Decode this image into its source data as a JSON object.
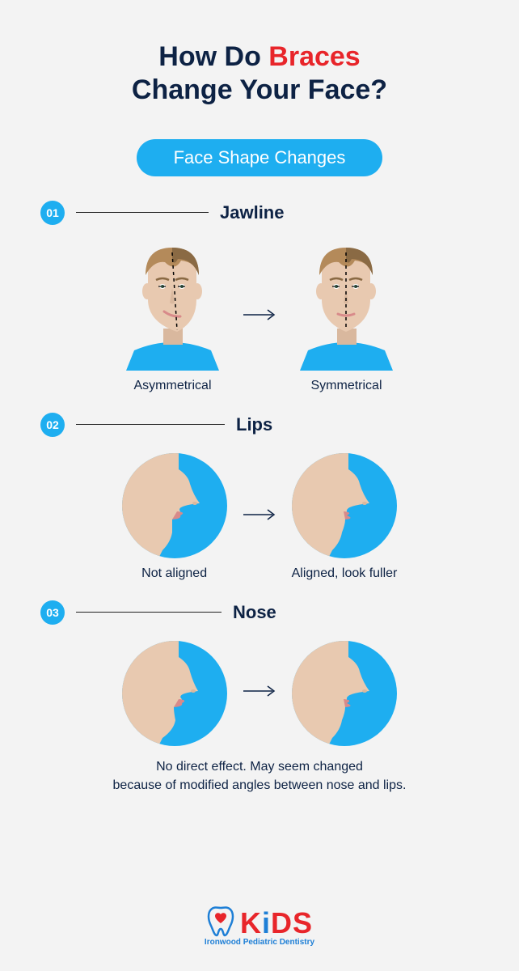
{
  "colors": {
    "background": "#f3f3f3",
    "text": "#0d2244",
    "accent_red": "#e8252a",
    "accent_blue": "#1eaef0",
    "logo_blue": "#1e7fd6",
    "skin": "#e8c9b0",
    "skin_shadow": "#d9b89e",
    "hair": "#b48a5a",
    "hair_dark": "#8a6a44",
    "lips": "#d88a8a",
    "shirt": "#1eaef0",
    "line": "#222222"
  },
  "title": {
    "line1_pre": "How Do ",
    "line1_accent": "Braces",
    "line2": "Change Your Face?",
    "fontsize": 34
  },
  "pill_label": "Face Shape Changes",
  "sections": [
    {
      "num": "01",
      "title": "Jawline",
      "header_line_width": 164,
      "type": "face-pair",
      "before": {
        "caption": "Asymmetrical",
        "asymmetric": true
      },
      "after": {
        "caption": "Symmetrical",
        "asymmetric": false
      }
    },
    {
      "num": "02",
      "title": "Lips",
      "header_line_width": 184,
      "type": "profile-pair",
      "before": {
        "caption": "Not aligned",
        "variant": "lips-before"
      },
      "after": {
        "caption": "Aligned, look fuller",
        "variant": "lips-after"
      }
    },
    {
      "num": "03",
      "title": "Nose",
      "header_line_width": 180,
      "type": "profile-pair",
      "before": {
        "caption": "",
        "variant": "nose-before"
      },
      "after": {
        "caption": "",
        "variant": "nose-after"
      },
      "description": "No direct effect. May seem changed\nbecause of modified angles between nose and lips."
    }
  ],
  "logo": {
    "text_parts": [
      "K",
      "i",
      "DS"
    ],
    "subtitle": "Ironwood Pediatric Dentistry"
  }
}
